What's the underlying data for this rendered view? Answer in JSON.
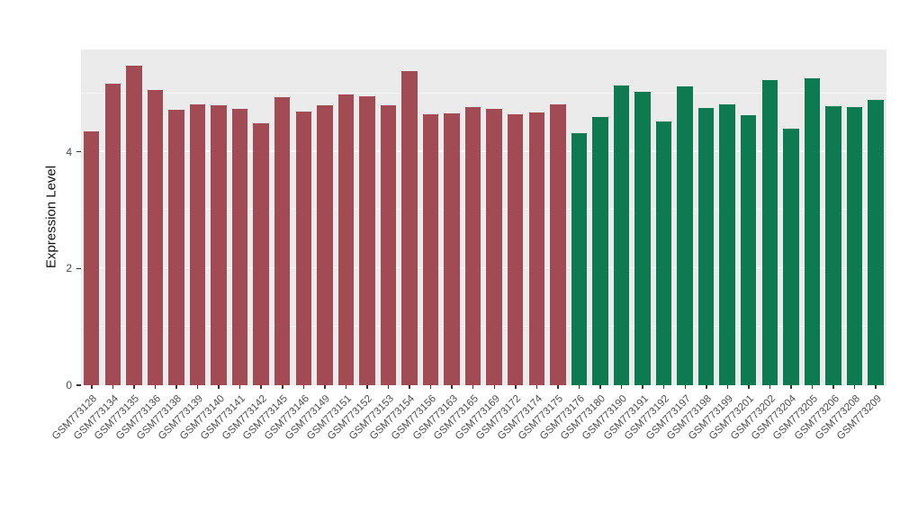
{
  "chart_data": {
    "type": "bar",
    "title": "",
    "ylabel": "Expression Level",
    "xlabel": "",
    "ylim": [
      0,
      5.75
    ],
    "yticks": [
      0,
      2,
      4
    ],
    "minor_gridlines": [
      1,
      3,
      5
    ],
    "panel_bg": "#EBEBEB",
    "grid_color": "#FFFFFF",
    "axis_text_color": "#4D4D4D",
    "legend": "none",
    "colors": {
      "group1": "#A24B55",
      "group2": "#0E7A52"
    },
    "bars": [
      {
        "label": "GSM773128",
        "value": 4.35,
        "group": "group1"
      },
      {
        "label": "GSM773134",
        "value": 5.16,
        "group": "group1"
      },
      {
        "label": "GSM773135",
        "value": 5.48,
        "group": "group1"
      },
      {
        "label": "GSM773136",
        "value": 5.06,
        "group": "group1"
      },
      {
        "label": "GSM773138",
        "value": 4.72,
        "group": "group1"
      },
      {
        "label": "GSM773139",
        "value": 4.81,
        "group": "group1"
      },
      {
        "label": "GSM773140",
        "value": 4.8,
        "group": "group1"
      },
      {
        "label": "GSM773141",
        "value": 4.73,
        "group": "group1"
      },
      {
        "label": "GSM773142",
        "value": 4.48,
        "group": "group1"
      },
      {
        "label": "GSM773145",
        "value": 4.94,
        "group": "group1"
      },
      {
        "label": "GSM773146",
        "value": 4.69,
        "group": "group1"
      },
      {
        "label": "GSM773149",
        "value": 4.8,
        "group": "group1"
      },
      {
        "label": "GSM773151",
        "value": 4.98,
        "group": "group1"
      },
      {
        "label": "GSM773152",
        "value": 4.95,
        "group": "group1"
      },
      {
        "label": "GSM773153",
        "value": 4.8,
        "group": "group1"
      },
      {
        "label": "GSM773154",
        "value": 5.38,
        "group": "group1"
      },
      {
        "label": "GSM773156",
        "value": 4.64,
        "group": "group1"
      },
      {
        "label": "GSM773163",
        "value": 4.66,
        "group": "group1"
      },
      {
        "label": "GSM773165",
        "value": 4.77,
        "group": "group1"
      },
      {
        "label": "GSM773169",
        "value": 4.73,
        "group": "group1"
      },
      {
        "label": "GSM773172",
        "value": 4.64,
        "group": "group1"
      },
      {
        "label": "GSM773174",
        "value": 4.67,
        "group": "group1"
      },
      {
        "label": "GSM773175",
        "value": 4.81,
        "group": "group1"
      },
      {
        "label": "GSM773176",
        "value": 4.31,
        "group": "group2"
      },
      {
        "label": "GSM773180",
        "value": 4.59,
        "group": "group2"
      },
      {
        "label": "GSM773190",
        "value": 5.14,
        "group": "group2"
      },
      {
        "label": "GSM773191",
        "value": 5.02,
        "group": "group2"
      },
      {
        "label": "GSM773192",
        "value": 4.52,
        "group": "group2"
      },
      {
        "label": "GSM773197",
        "value": 5.12,
        "group": "group2"
      },
      {
        "label": "GSM773198",
        "value": 4.75,
        "group": "group2"
      },
      {
        "label": "GSM773199",
        "value": 4.81,
        "group": "group2"
      },
      {
        "label": "GSM773201",
        "value": 4.63,
        "group": "group2"
      },
      {
        "label": "GSM773202",
        "value": 5.22,
        "group": "group2"
      },
      {
        "label": "GSM773204",
        "value": 4.39,
        "group": "group2"
      },
      {
        "label": "GSM773205",
        "value": 5.25,
        "group": "group2"
      },
      {
        "label": "GSM773206",
        "value": 4.78,
        "group": "group2"
      },
      {
        "label": "GSM773208",
        "value": 4.77,
        "group": "group2"
      },
      {
        "label": "GSM773209",
        "value": 4.88,
        "group": "group2"
      }
    ]
  }
}
